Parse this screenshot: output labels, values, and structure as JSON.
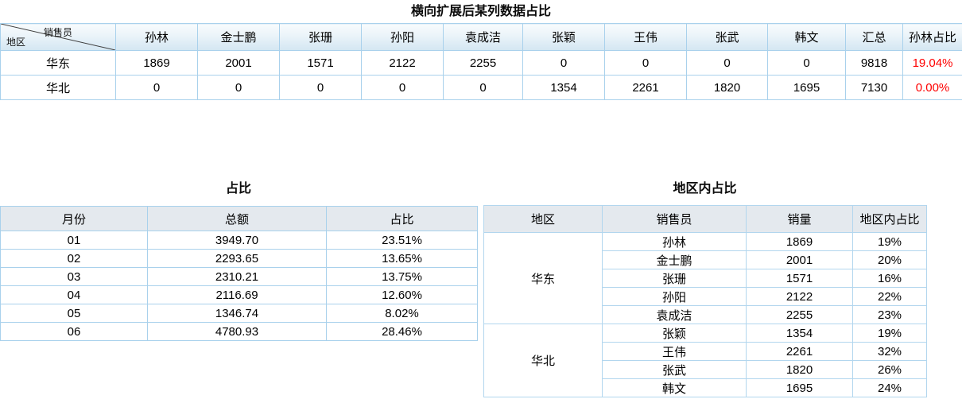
{
  "top_table": {
    "title": "横向扩展后某列数据占比",
    "corner": {
      "top_right": "销售员",
      "bottom_left": "地区"
    },
    "columns": [
      "孙林",
      "金士鹏",
      "张珊",
      "孙阳",
      "袁成洁",
      "张颖",
      "王伟",
      "张武",
      "韩文",
      "汇总",
      "孙林占比"
    ],
    "rows": [
      {
        "region": "华东",
        "values": [
          "1869",
          "2001",
          "1571",
          "2122",
          "2255",
          "0",
          "0",
          "0",
          "0",
          "9818"
        ],
        "ratio": "19.04%"
      },
      {
        "region": "华北",
        "values": [
          "0",
          "0",
          "0",
          "0",
          "0",
          "1354",
          "2261",
          "1820",
          "1695",
          "7130"
        ],
        "ratio": "0.00%"
      }
    ]
  },
  "ratio_table": {
    "title": "占比",
    "columns": [
      "月份",
      "总额",
      "占比"
    ],
    "rows": [
      [
        "01",
        "3949.70",
        "23.51%"
      ],
      [
        "02",
        "2293.65",
        "13.65%"
      ],
      [
        "03",
        "2310.21",
        "13.75%"
      ],
      [
        "04",
        "2116.69",
        "12.60%"
      ],
      [
        "05",
        "1346.74",
        "8.02%"
      ],
      [
        "06",
        "4780.93",
        "28.46%"
      ]
    ]
  },
  "region_table": {
    "title": "地区内占比",
    "columns": [
      "地区",
      "销售员",
      "销量",
      "地区内占比"
    ],
    "groups": [
      {
        "region": "华东",
        "rows": [
          [
            "孙林",
            "1869",
            "19%"
          ],
          [
            "金士鹏",
            "2001",
            "20%"
          ],
          [
            "张珊",
            "1571",
            "16%"
          ],
          [
            "孙阳",
            "2122",
            "22%"
          ],
          [
            "袁成洁",
            "2255",
            "23%"
          ]
        ]
      },
      {
        "region": "华北",
        "rows": [
          [
            "张颖",
            "1354",
            "19%"
          ],
          [
            "王伟",
            "2261",
            "32%"
          ],
          [
            "张武",
            "1820",
            "26%"
          ],
          [
            "韩文",
            "1695",
            "24%"
          ]
        ]
      }
    ]
  },
  "colors": {
    "inner_border": "#a9d1ec",
    "outer_border": "#8fc2e7",
    "flat_header_fill": "#e4e9ee",
    "gradient_header_top": "#f8fbfd",
    "gradient_header_bottom": "#d3e6f2",
    "ratio_red": "#fe0000"
  }
}
